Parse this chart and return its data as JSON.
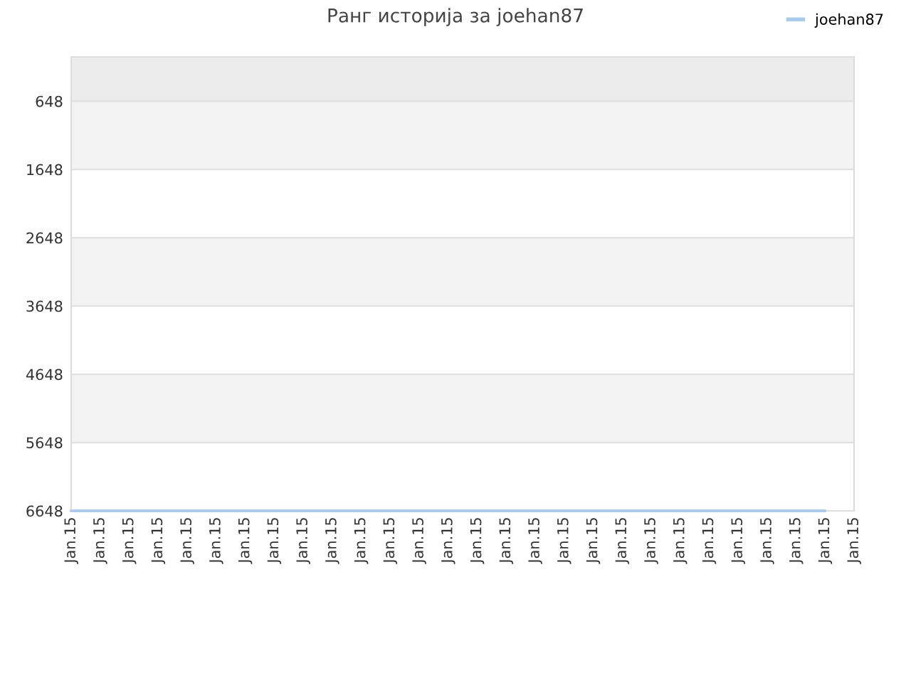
{
  "chart_data": {
    "type": "line",
    "title": "Ранг историја за joehan87",
    "categories": [
      "Jan.15",
      "Jan.15",
      "Jan.15",
      "Jan.15",
      "Jan.15",
      "Jan.15",
      "Jan.15",
      "Jan.15",
      "Jan.15",
      "Jan.15",
      "Jan.15",
      "Jan.15",
      "Jan.15",
      "Jan.15",
      "Jan.15",
      "Jan.15",
      "Jan.15",
      "Jan.15",
      "Jan.15",
      "Jan.15",
      "Jan.15",
      "Jan.15",
      "Jan.15",
      "Jan.15",
      "Jan.15",
      "Jan.15",
      "Jan.15",
      "Jan.15"
    ],
    "series": [
      {
        "name": "joehan87",
        "color": "#a6cdee",
        "values": [
          6648,
          6648,
          6648,
          6648,
          6648,
          6648,
          6648,
          6648,
          6648,
          6648,
          6648,
          6648,
          6648,
          6648,
          6648,
          6648,
          6648,
          6648,
          6648,
          6648,
          6648,
          6648,
          6648,
          6648,
          6648,
          6648,
          6648,
          null
        ]
      }
    ],
    "ylim": [
      6648,
      0
    ],
    "yticks": [
      648,
      1648,
      2648,
      3648,
      4648,
      5648,
      6648
    ],
    "bands": [
      {
        "axis": "y",
        "from": 0,
        "to": 648,
        "color": "#ececec"
      },
      {
        "axis": "y",
        "from": 648,
        "to": 1648,
        "color": "#f3f3f3"
      },
      {
        "axis": "y",
        "from": 2648,
        "to": 3648,
        "color": "#f3f3f3"
      },
      {
        "axis": "y",
        "from": 4648,
        "to": 5648,
        "color": "#f3f3f3"
      }
    ],
    "grid": "y",
    "legend": "top right"
  }
}
